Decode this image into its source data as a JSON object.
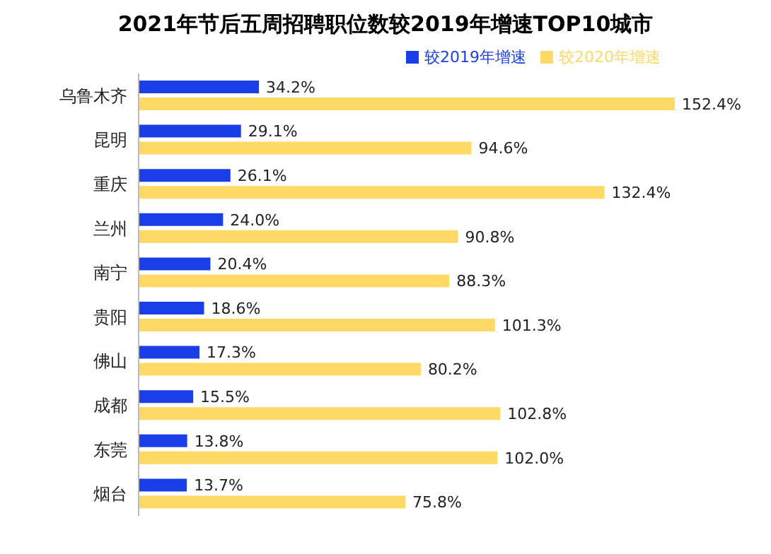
{
  "chart_data": {
    "type": "bar",
    "orientation": "horizontal",
    "title": "2021年节后五周招聘职位数较2019年增速TOP10城市",
    "categories": [
      "乌鲁木齐",
      "昆明",
      "重庆",
      "兰州",
      "南宁",
      "贵阳",
      "佛山",
      "成都",
      "东莞",
      "烟台"
    ],
    "series": [
      {
        "name": "较2019年增速",
        "color": "#1a3ee8",
        "values": [
          34.2,
          29.1,
          26.1,
          24.0,
          20.4,
          18.6,
          17.3,
          15.5,
          13.8,
          13.7
        ],
        "value_labels": [
          "34.2%",
          "29.1%",
          "26.1%",
          "24.0%",
          "20.4%",
          "18.6%",
          "17.3%",
          "15.5%",
          "13.8%",
          "13.7%"
        ]
      },
      {
        "name": "较2020年增速",
        "color": "#ffd966",
        "values": [
          152.4,
          94.6,
          132.4,
          90.8,
          88.3,
          101.3,
          80.2,
          102.8,
          102.0,
          75.8
        ],
        "value_labels": [
          "152.4%",
          "94.6%",
          "132.4%",
          "90.8%",
          "88.3%",
          "101.3%",
          "80.2%",
          "102.8%",
          "102.0%",
          "75.8%"
        ]
      }
    ],
    "legend": "top right"
  }
}
